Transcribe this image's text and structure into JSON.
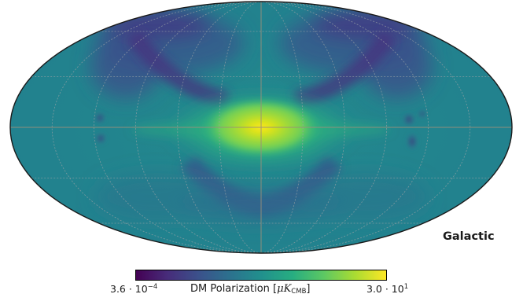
{
  "map": {
    "projection": "Mollweide",
    "coord_system": "Galactic",
    "colormap": "viridis",
    "graticule": true
  },
  "colorbar": {
    "min_mantissa": "3.6",
    "min_exponent": "−4",
    "max_mantissa": "3.0",
    "max_exponent": "1",
    "title_text": "DM Polarization [",
    "unit_symbol": "μK",
    "unit_subscript": "CMB",
    "title_close": "]",
    "stops": [
      "#440154",
      "#472c7a",
      "#3b518b",
      "#2c718e",
      "#21908d",
      "#27ad81",
      "#5cc863",
      "#aadc32",
      "#fde725"
    ]
  }
}
